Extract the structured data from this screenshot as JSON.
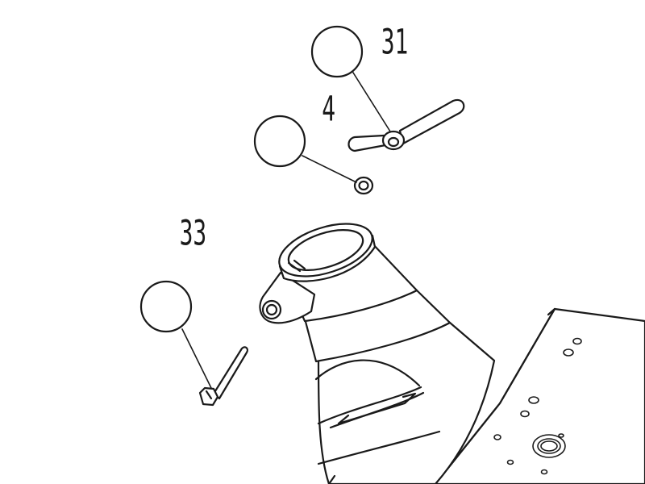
{
  "diagram": {
    "type": "exploded parts drawing",
    "callouts": [
      {
        "id": "callout-31",
        "number": "31",
        "part": "wing-nut"
      },
      {
        "id": "callout-4",
        "number": "4",
        "part": "washer"
      },
      {
        "id": "callout-33",
        "number": "33",
        "part": "hex-bolt"
      }
    ],
    "colors": {
      "line": "#1a1a1a",
      "background": "#ffffff"
    }
  }
}
